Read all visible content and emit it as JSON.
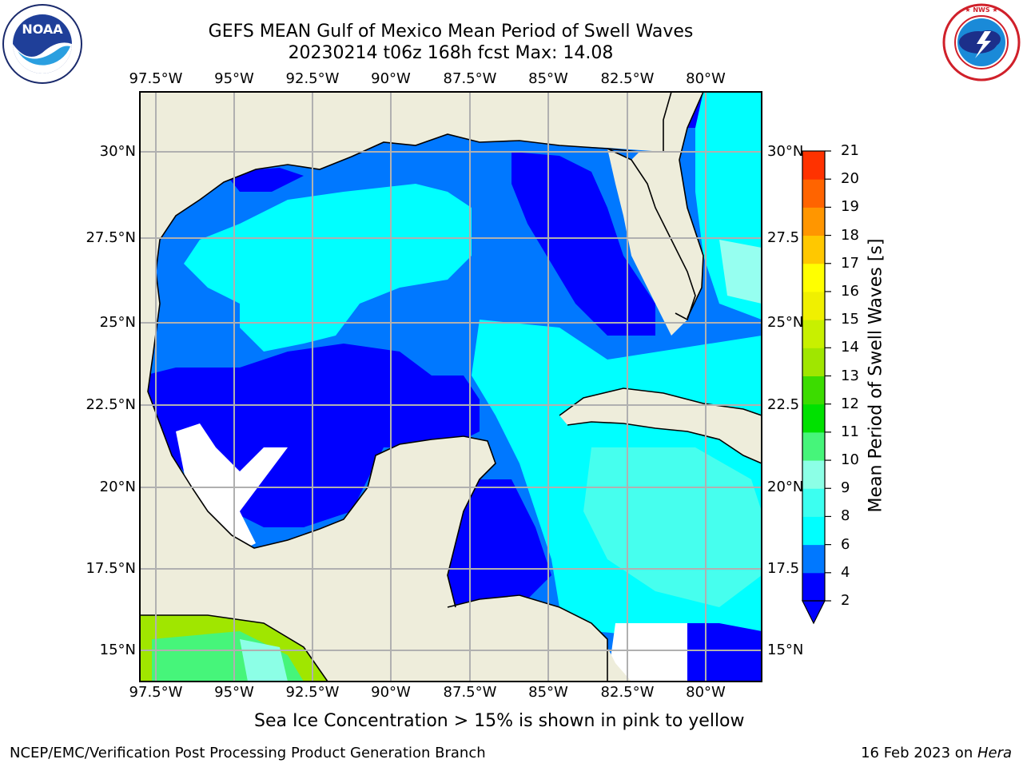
{
  "header": {
    "title_line1": "GEFS MEAN Gulf of Mexico Mean Period of Swell Waves",
    "title_line2": "20230214 t06z 168h fcst   Max: 14.08"
  },
  "logos": {
    "left": {
      "text": "NOAA",
      "ring_text": "NATIONAL OCEANIC AND ATMOSPHERIC ADMINISTRATION · U.S. DEPARTMENT OF COMMERCE"
    },
    "right": {
      "ring_text": "NATIONAL WEATHER SERVICE"
    }
  },
  "axes": {
    "lon_labels": [
      "97.5°W",
      "95°W",
      "92.5°W",
      "90°W",
      "87.5°W",
      "85°W",
      "82.5°W",
      "80°W"
    ],
    "lat_labels_left": [
      "30°N",
      "27.5°N",
      "25°N",
      "22.5°N",
      "20°N",
      "17.5°N",
      "15°N"
    ],
    "lat_labels_right": [
      "30°N",
      "27.5",
      "25°N",
      "22.5",
      "20°N",
      "17.5",
      "15°N"
    ]
  },
  "colorbar": {
    "title": "Mean Period of Swell Waves [s]",
    "levels": [
      "2",
      "4",
      "6",
      "8",
      "9",
      "10",
      "11",
      "12",
      "13",
      "14",
      "15",
      "16",
      "17",
      "18",
      "19",
      "20",
      "21"
    ],
    "colors": [
      "#0000ff",
      "#0078ff",
      "#00ffff",
      "#3cfff0",
      "#8cffe6",
      "#46f57a",
      "#00e100",
      "#3cdc00",
      "#a0e600",
      "#c8f000",
      "#f0f000",
      "#ffff00",
      "#ffc800",
      "#ff9600",
      "#ff6400",
      "#ff3200",
      "#ff0000"
    ]
  },
  "palette": {
    "land": "#eeeddb",
    "deep_blue": "#0000ff",
    "mid_blue": "#0078ff",
    "cyan": "#00ffff",
    "light_cyan": "#46ffee",
    "pale_cyan": "#96fff0",
    "no_data": "#ffffff",
    "grid": "#b0b0b0"
  },
  "footer": {
    "ice_note": "Sea Ice Concentration > 15% is shown in pink to yellow",
    "credit": "NCEP/EMC/Verification Post Processing Product Generation Branch",
    "date": "16 Feb 2023 on ",
    "machine": "Hera"
  }
}
